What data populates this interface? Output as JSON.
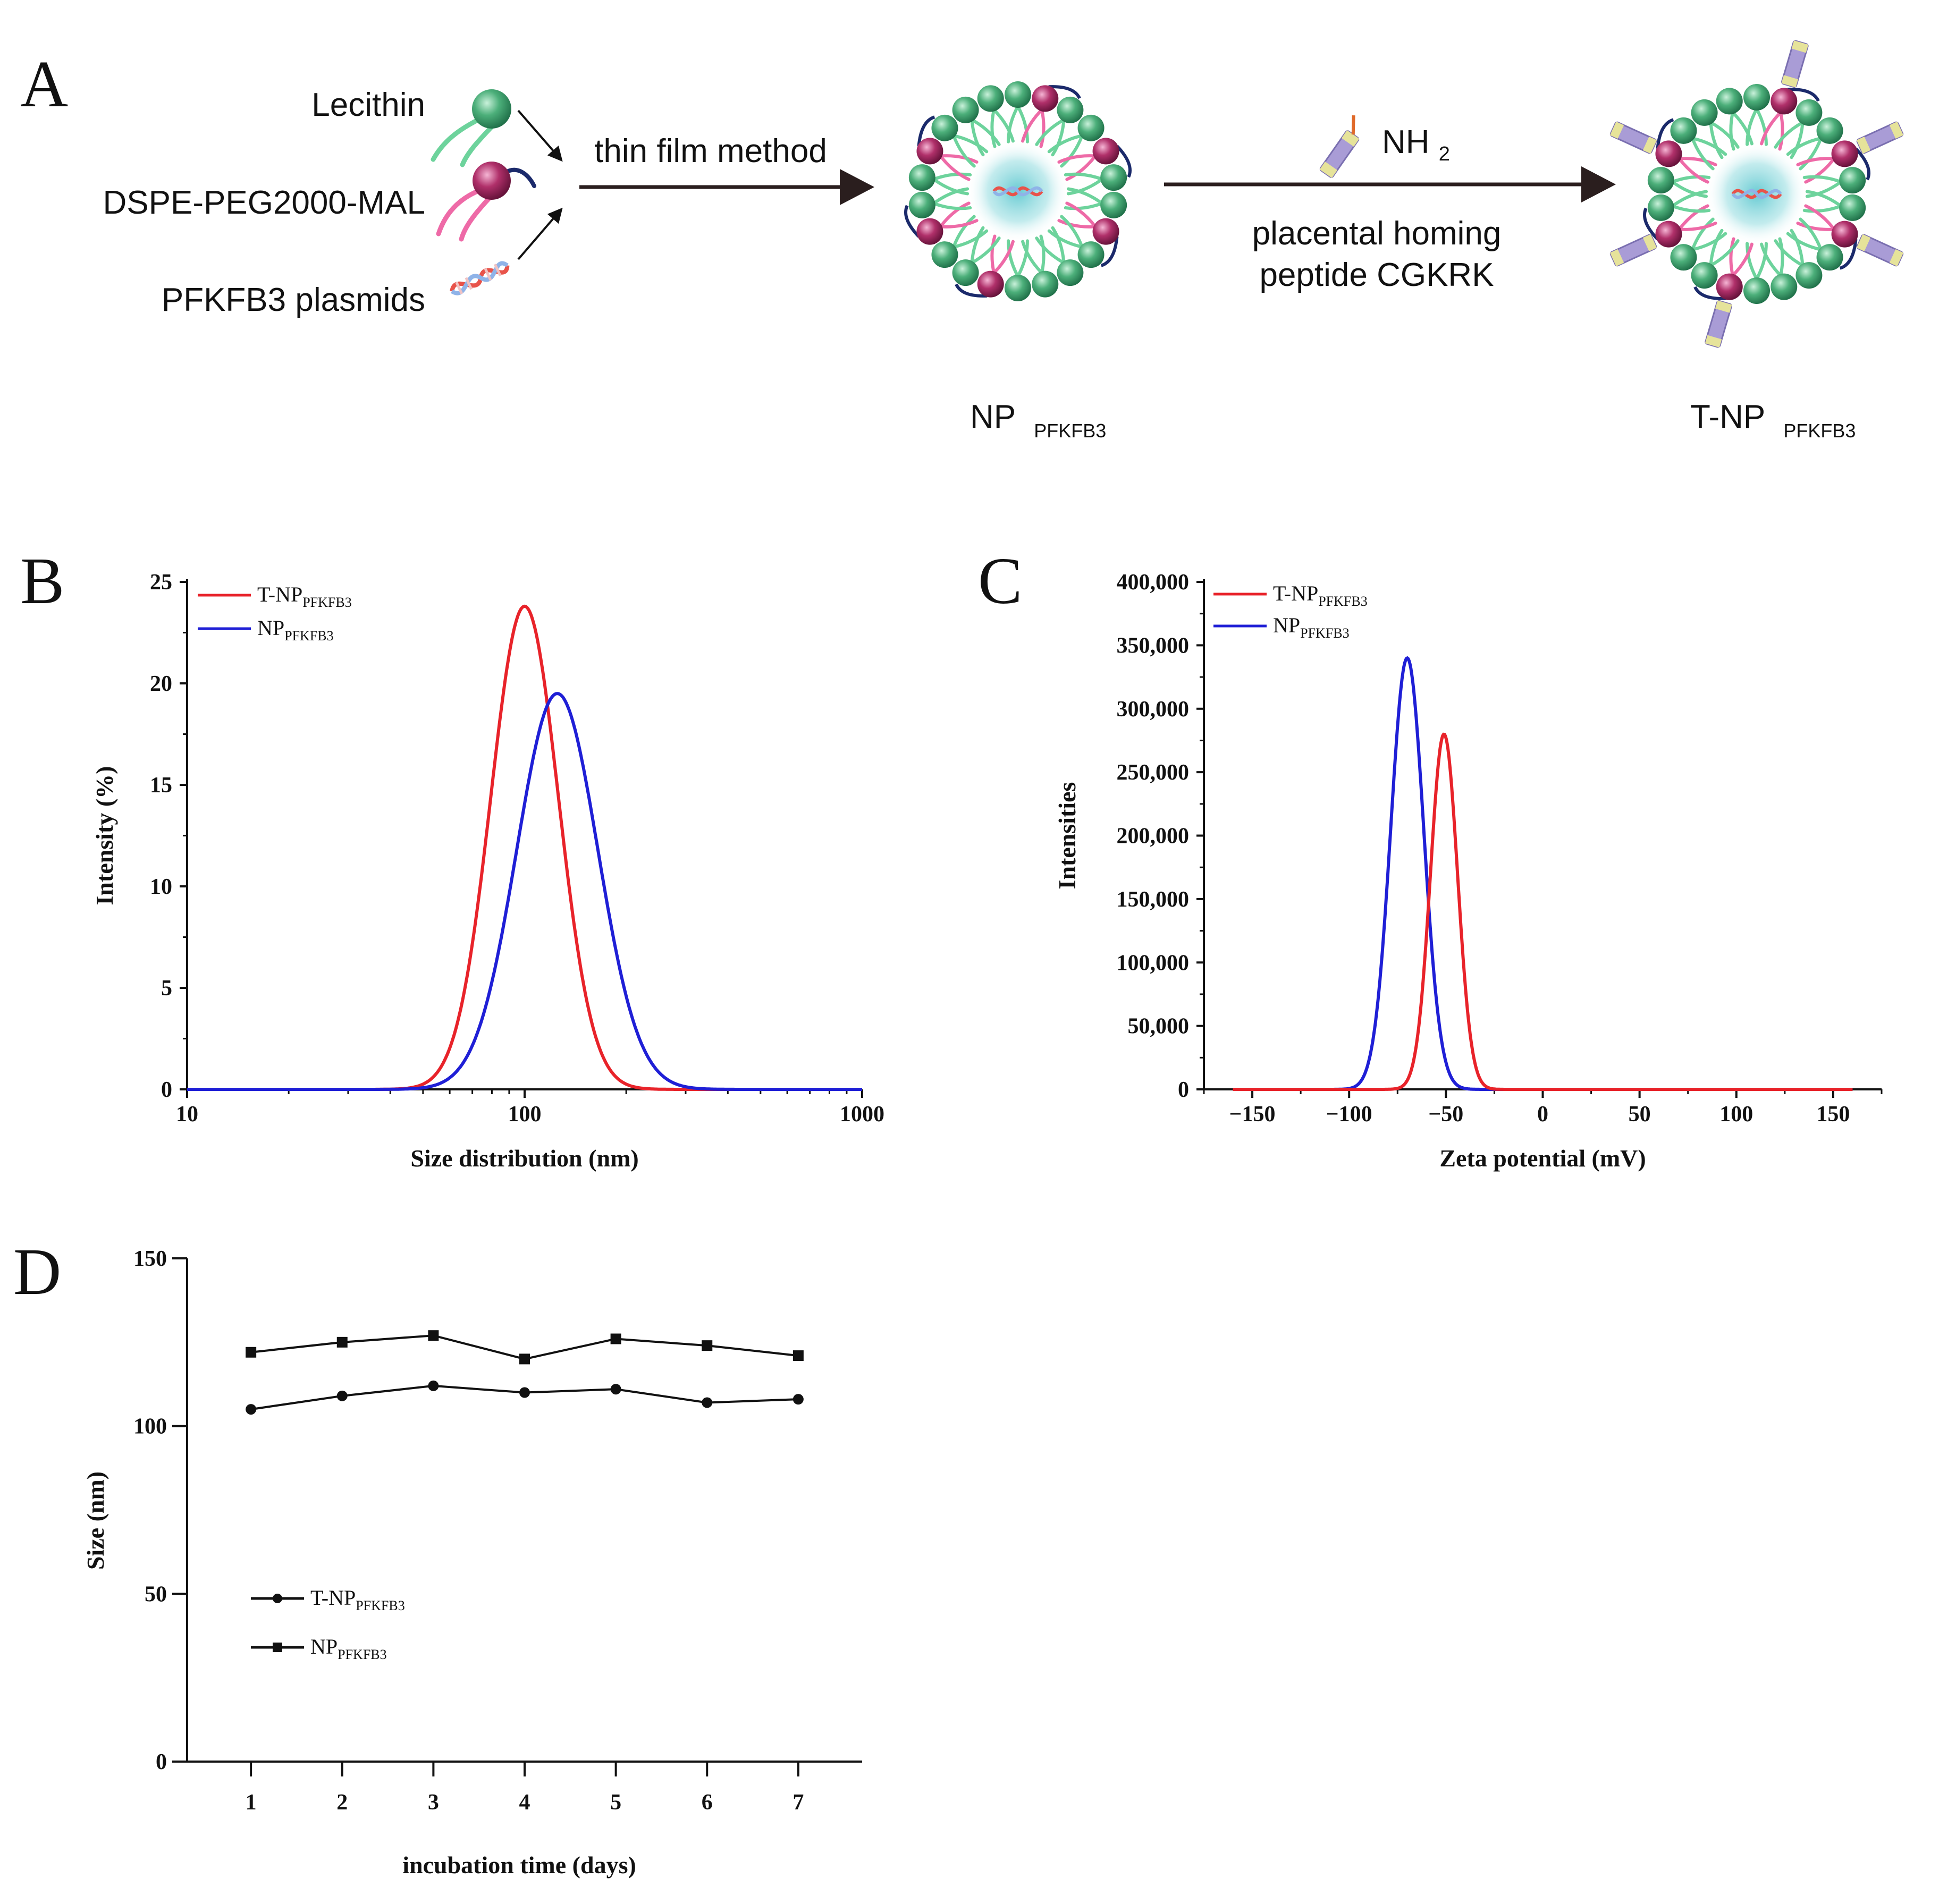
{
  "panels": {
    "A": {
      "letter": "A",
      "components": [
        "Lecithin",
        "DSPE-PEG2000-MAL",
        "PFKFB3 plasmids"
      ],
      "step1_label": "thin film method",
      "reagent": {
        "main": "NH",
        "sub": "2"
      },
      "step2_label_line1": "placental homing",
      "step2_label_line2": "peptide CGKRK",
      "product1": {
        "main": "NP",
        "sub": "PFKFB3"
      },
      "product2": {
        "main": "T-NP",
        "sub": "PFKFB3"
      },
      "colors": {
        "green": "#4caf7a",
        "magenta": "#b0306a",
        "core": "#7fd6dc",
        "arrow": "#2a1e1e"
      }
    },
    "B": {
      "letter": "B"
    },
    "C": {
      "letter": "C"
    },
    "D": {
      "letter": "D"
    }
  },
  "legend_main": {
    "tnp": "T-NP",
    "np": "NP"
  },
  "legend_sub": "PFKFB3",
  "series_colors": {
    "tnp": "#e8232a",
    "np": "#1f1fd6",
    "black": "#111111"
  },
  "chart_data": [
    {
      "id": "B",
      "type": "line",
      "xscale": "log",
      "xlim": [
        10,
        1000
      ],
      "ylim": [
        0,
        25
      ],
      "xticks": [
        "10",
        "100",
        "1000"
      ],
      "yticks": [
        "0",
        "5",
        "10",
        "15",
        "20",
        "25"
      ],
      "xlabel": "Size distribution (nm)",
      "ylabel": "Intensity (%)",
      "legend_position": "top-left",
      "series": [
        {
          "name": "T-NPPFKFB3",
          "color": "#e8232a",
          "peak_x": 100,
          "peak_y": 23.8,
          "sigma_log10": 0.1
        },
        {
          "name": "NPPFKFB3",
          "color": "#1f1fd6",
          "peak_x": 125,
          "peak_y": 19.5,
          "sigma_log10": 0.12
        }
      ]
    },
    {
      "id": "C",
      "type": "line",
      "xlim": [
        -175,
        175
      ],
      "ylim": [
        0,
        400000
      ],
      "xticks": [
        "−150",
        "−100",
        "−50",
        "0",
        "50",
        "100",
        "150"
      ],
      "xtick_values": [
        -150,
        -100,
        -50,
        0,
        50,
        100,
        150
      ],
      "yticks": [
        "0",
        "50,000",
        "100,000",
        "150,000",
        "200,000",
        "250,000",
        "300,000",
        "350,000",
        "400,000"
      ],
      "xlabel": "Zeta potential (mV)",
      "ylabel": "Intensities",
      "legend_position": "top-left",
      "series": [
        {
          "name": "T-NPPFKFB3",
          "color": "#e8232a",
          "peak_x": -51,
          "peak_y": 280000,
          "sigma": 7
        },
        {
          "name": "NPPFKFB3",
          "color": "#1f1fd6",
          "peak_x": -70,
          "peak_y": 340000,
          "sigma": 8.5
        }
      ]
    },
    {
      "id": "D",
      "type": "line",
      "x": [
        1,
        2,
        3,
        4,
        5,
        6,
        7
      ],
      "xticks": [
        "1",
        "2",
        "3",
        "4",
        "5",
        "6",
        "7"
      ],
      "xlim": [
        0.3,
        7.7
      ],
      "ylim": [
        0,
        150
      ],
      "yticks": [
        "0",
        "50",
        "100",
        "150"
      ],
      "xlabel": "incubation time (days)",
      "ylabel": "Size (nm)",
      "legend_position": "bottom-left",
      "series": [
        {
          "name": "T-NPPFKFB3",
          "marker": "circle",
          "values": [
            105,
            109,
            112,
            110,
            111,
            107,
            108
          ]
        },
        {
          "name": "NPPFKFB3",
          "marker": "square",
          "values": [
            122,
            125,
            127,
            120,
            126,
            124,
            121
          ]
        }
      ]
    }
  ]
}
